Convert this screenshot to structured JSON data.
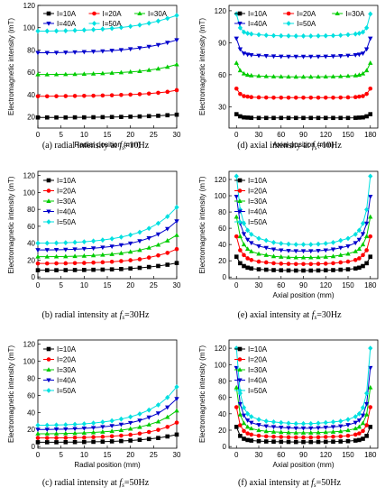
{
  "figure": {
    "captions": [
      {
        "prefix": "(a) radial intensity at ",
        "f": "f",
        "sub": "s",
        "suffix": "=10Hz"
      },
      {
        "prefix": "(d) axial intensity at ",
        "f": "f",
        "sub": "s",
        "suffix": "=10Hz"
      },
      {
        "prefix": "(b) radial intensity at ",
        "f": "f",
        "sub": "s",
        "suffix": "=30Hz"
      },
      {
        "prefix": "(e) axial intensity at ",
        "f": "f",
        "sub": "s",
        "suffix": "=30Hz"
      },
      {
        "prefix": "(c) radial intensity at ",
        "f": "f",
        "sub": "s",
        "suffix": "=50Hz"
      },
      {
        "prefix": "(f) axial intensity at ",
        "f": "f",
        "sub": "s",
        "suffix": "=50Hz"
      }
    ],
    "colors": {
      "I=10A": "#000000",
      "I=20A": "#ff0000",
      "I=30A": "#00cc00",
      "I=40A": "#0000cc",
      "I=50A": "#00e0e0"
    },
    "markers": {
      "I=10A": "square",
      "I=20A": "circle",
      "I=30A": "triangle-up",
      "I=40A": "triangle-down",
      "I=50A": "diamond"
    }
  },
  "chart_data": [
    {
      "id": "a",
      "type": "line",
      "xlabel": "Radial position (mm)",
      "ylabel": "Electromagnetic intensity (mT)",
      "xlim": [
        0,
        30
      ],
      "ylim": [
        10,
        120
      ],
      "xticks": [
        0,
        5,
        10,
        15,
        20,
        25,
        30
      ],
      "yticks": [
        20,
        40,
        60,
        80,
        100,
        120
      ],
      "legend": "top-two-rows",
      "x": [
        0,
        2,
        4,
        6,
        8,
        10,
        12,
        14,
        16,
        18,
        20,
        22,
        24,
        26,
        28,
        30
      ],
      "series": [
        {
          "name": "I=10A",
          "values": [
            19.5,
            19.5,
            19.5,
            19.5,
            19.6,
            19.6,
            19.7,
            19.8,
            19.9,
            20.0,
            20.2,
            20.4,
            20.7,
            21.0,
            21.5,
            22.0
          ]
        },
        {
          "name": "I=20A",
          "values": [
            38.5,
            38.5,
            38.6,
            38.7,
            38.8,
            38.9,
            39.0,
            39.2,
            39.4,
            39.7,
            40.0,
            40.4,
            40.9,
            41.6,
            42.5,
            44.0
          ]
        },
        {
          "name": "I=30A",
          "values": [
            58,
            58,
            58.1,
            58.2,
            58.3,
            58.5,
            58.7,
            59.0,
            59.4,
            59.8,
            60.4,
            61.0,
            62.0,
            63.2,
            64.8,
            67.0
          ]
        },
        {
          "name": "I=40A",
          "values": [
            77.5,
            77.5,
            77.6,
            77.8,
            78.0,
            78.3,
            78.6,
            79.0,
            79.5,
            80.1,
            80.9,
            81.8,
            83.0,
            84.6,
            86.6,
            89.0
          ]
        },
        {
          "name": "I=50A",
          "values": [
            97,
            97,
            97.1,
            97.3,
            97.6,
            97.9,
            98.3,
            98.8,
            99.4,
            100.2,
            101.2,
            102.4,
            104.0,
            106.0,
            108.4,
            111.0
          ]
        }
      ]
    },
    {
      "id": "d",
      "type": "line",
      "xlabel": "Axial position (mm)",
      "ylabel": "Electromagnetic intensity (mT)",
      "xlim": [
        -10,
        190
      ],
      "ylim": [
        10,
        125
      ],
      "xticks": [
        0,
        30,
        60,
        90,
        120,
        150,
        180
      ],
      "yticks": [
        30,
        60,
        90,
        120
      ],
      "legend": "top-two-rows",
      "x": [
        0,
        5,
        10,
        15,
        20,
        30,
        40,
        50,
        60,
        70,
        80,
        90,
        100,
        110,
        120,
        130,
        140,
        150,
        160,
        165,
        170,
        175,
        180
      ],
      "series": [
        {
          "name": "I=10A",
          "values": [
            23,
            21,
            20,
            19.8,
            19.6,
            19.5,
            19.5,
            19.5,
            19.5,
            19.5,
            19.5,
            19.5,
            19.5,
            19.5,
            19.5,
            19.5,
            19.5,
            19.5,
            19.6,
            19.8,
            20,
            21,
            23
          ]
        },
        {
          "name": "I=20A",
          "values": [
            47,
            42,
            40,
            39.5,
            39,
            38.8,
            38.6,
            38.5,
            38.5,
            38.5,
            38.5,
            38.5,
            38.5,
            38.5,
            38.5,
            38.5,
            38.6,
            38.8,
            39,
            39.5,
            40,
            42,
            47
          ]
        },
        {
          "name": "I=30A",
          "values": [
            71,
            64,
            61,
            59.8,
            59.3,
            58.8,
            58.5,
            58.3,
            58.2,
            58.1,
            58.0,
            58.0,
            58.0,
            58.1,
            58.2,
            58.3,
            58.5,
            58.8,
            59.3,
            59.8,
            61,
            64,
            71
          ]
        },
        {
          "name": "I=40A",
          "values": [
            94,
            84,
            80,
            79,
            78.5,
            78,
            77.6,
            77.3,
            77.1,
            77.0,
            77.0,
            77.0,
            77.0,
            77.0,
            77.1,
            77.3,
            77.6,
            78,
            78.5,
            79,
            80,
            84,
            94
          ]
        },
        {
          "name": "I=50A",
          "values": [
            117,
            104,
            100,
            98.8,
            98.2,
            97.5,
            97.0,
            96.7,
            96.5,
            96.4,
            96.3,
            96.3,
            96.3,
            96.4,
            96.5,
            96.7,
            97.0,
            97.5,
            98.2,
            98.8,
            100,
            104,
            117
          ]
        }
      ]
    },
    {
      "id": "b",
      "type": "line",
      "xlabel": "",
      "ylabel": "Electromagnetic intensity (mT)",
      "xlim": [
        0,
        30
      ],
      "ylim": [
        -2,
        125
      ],
      "xticks": [
        0,
        5,
        10,
        15,
        20,
        25,
        30
      ],
      "yticks": [
        0,
        20,
        40,
        60,
        80,
        100,
        120
      ],
      "legend": "top-left",
      "x": [
        0,
        2,
        4,
        6,
        8,
        10,
        12,
        14,
        16,
        18,
        20,
        22,
        24,
        26,
        28,
        30
      ],
      "series": [
        {
          "name": "I=10A",
          "values": [
            8,
            8,
            8,
            8.1,
            8.2,
            8.3,
            8.5,
            8.7,
            9.0,
            9.4,
            10.0,
            10.8,
            11.8,
            13.0,
            14.5,
            16.5
          ]
        },
        {
          "name": "I=20A",
          "values": [
            16,
            16,
            16.1,
            16.2,
            16.4,
            16.6,
            17.0,
            17.4,
            18.0,
            18.8,
            19.8,
            21.0,
            23.0,
            25.5,
            28.5,
            33.0
          ]
        },
        {
          "name": "I=30A",
          "values": [
            24,
            24,
            24.1,
            24.3,
            24.6,
            25.0,
            25.5,
            26.2,
            27.0,
            28.2,
            29.8,
            31.8,
            34.5,
            38.0,
            43.0,
            49.5
          ]
        },
        {
          "name": "I=40A",
          "values": [
            32,
            32,
            32.2,
            32.4,
            32.8,
            33.3,
            34.0,
            35.0,
            36.2,
            37.8,
            39.8,
            42.5,
            46.0,
            50.5,
            57.0,
            66.0
          ]
        },
        {
          "name": "I=50A",
          "values": [
            40,
            40,
            40.2,
            40.5,
            41.0,
            41.6,
            42.5,
            43.7,
            45.2,
            47.2,
            49.8,
            53.0,
            57.5,
            63.5,
            71.5,
            82.5
          ]
        }
      ]
    },
    {
      "id": "e",
      "type": "line",
      "xlabel": "Axial position (mm)",
      "ylabel": "Electromagnetic intensity (mT)",
      "xlim": [
        -10,
        190
      ],
      "ylim": [
        -2,
        130
      ],
      "xticks": [
        0,
        30,
        60,
        90,
        120,
        150,
        180
      ],
      "yticks": [
        0,
        20,
        40,
        60,
        80,
        100,
        120
      ],
      "legend": "top-left",
      "x": [
        0,
        5,
        10,
        15,
        20,
        30,
        40,
        50,
        60,
        70,
        80,
        90,
        100,
        110,
        120,
        130,
        140,
        150,
        160,
        165,
        170,
        175,
        180
      ],
      "series": [
        {
          "name": "I=10A",
          "values": [
            25,
            17,
            13.5,
            11.5,
            10.5,
            9.5,
            9.0,
            8.5,
            8.3,
            8.1,
            8.0,
            8.0,
            8.0,
            8.1,
            8.3,
            8.5,
            9.0,
            9.5,
            10.5,
            11.5,
            13.5,
            17,
            25
          ]
        },
        {
          "name": "I=20A",
          "values": [
            50,
            33,
            27,
            23,
            21,
            19,
            18,
            17,
            16.5,
            16.2,
            16,
            16,
            16,
            16.2,
            16.5,
            17,
            18,
            19,
            21,
            23,
            27,
            33,
            50
          ]
        },
        {
          "name": "I=30A",
          "values": [
            74,
            50,
            40,
            34.5,
            31.5,
            28.5,
            27,
            25.5,
            24.8,
            24.3,
            24,
            24,
            24,
            24.3,
            24.8,
            25.5,
            27,
            28.5,
            31.5,
            34.5,
            40,
            50,
            74
          ]
        },
        {
          "name": "I=40A",
          "values": [
            99,
            66,
            53,
            46,
            42,
            38,
            36,
            34,
            33,
            32.4,
            32,
            32,
            32,
            32.4,
            33,
            34,
            36,
            38,
            42,
            46,
            53,
            66,
            99
          ]
        },
        {
          "name": "I=50A",
          "values": [
            124,
            83,
            66,
            57.5,
            52.5,
            47.5,
            45,
            42.5,
            41.3,
            40.5,
            40,
            40,
            40,
            40.5,
            41.3,
            42.5,
            45,
            47.5,
            52.5,
            57.5,
            66,
            83,
            124
          ]
        }
      ]
    },
    {
      "id": "c",
      "type": "line",
      "xlabel": "Radial position (mm)",
      "ylabel": "Electromagnetic intensity (mT)",
      "xlim": [
        0,
        30
      ],
      "ylim": [
        -2,
        125
      ],
      "xticks": [
        0,
        5,
        10,
        15,
        20,
        25,
        30
      ],
      "yticks": [
        0,
        20,
        40,
        60,
        80,
        100,
        120
      ],
      "legend": "top-left",
      "x": [
        0,
        2,
        4,
        6,
        8,
        10,
        12,
        14,
        16,
        18,
        20,
        22,
        24,
        26,
        28,
        30
      ],
      "series": [
        {
          "name": "I=10A",
          "values": [
            5,
            5,
            5,
            5.1,
            5.2,
            5.3,
            5.5,
            5.7,
            6.0,
            6.4,
            7.0,
            7.8,
            8.8,
            10.0,
            11.8,
            14.0
          ]
        },
        {
          "name": "I=20A",
          "values": [
            10,
            10,
            10.1,
            10.2,
            10.4,
            10.6,
            11.0,
            11.4,
            12.0,
            12.8,
            13.8,
            15.2,
            17.0,
            19.5,
            23.0,
            28.0
          ]
        },
        {
          "name": "I=30A",
          "values": [
            15,
            15,
            15.1,
            15.3,
            15.6,
            16.0,
            16.5,
            17.2,
            18.0,
            19.2,
            20.8,
            22.8,
            25.6,
            29.2,
            34.5,
            42.0
          ]
        },
        {
          "name": "I=40A",
          "values": [
            20,
            20,
            20.2,
            20.4,
            20.8,
            21.3,
            22.0,
            23.0,
            24.2,
            25.8,
            27.8,
            30.5,
            34.2,
            39.0,
            46.0,
            56.0
          ]
        },
        {
          "name": "I=50A",
          "values": [
            25,
            25,
            25.2,
            25.5,
            26.0,
            26.6,
            27.5,
            28.7,
            30.2,
            32.2,
            34.8,
            38.2,
            42.8,
            48.8,
            57.5,
            70.0
          ]
        }
      ]
    },
    {
      "id": "f",
      "type": "line",
      "xlabel": "Axial position (mm)",
      "ylabel": "Electromagnetic intensity (mT)",
      "xlim": [
        -10,
        190
      ],
      "ylim": [
        -2,
        130
      ],
      "xticks": [
        0,
        30,
        60,
        90,
        120,
        150,
        180
      ],
      "yticks": [
        0,
        20,
        40,
        60,
        80,
        100,
        120
      ],
      "legend": "top-left",
      "x": [
        0,
        5,
        10,
        15,
        20,
        30,
        40,
        50,
        60,
        70,
        80,
        90,
        100,
        110,
        120,
        130,
        140,
        150,
        160,
        165,
        170,
        175,
        180
      ],
      "series": [
        {
          "name": "I=10A",
          "values": [
            24,
            13,
            9.5,
            8.0,
            7.3,
            6.6,
            6.2,
            6.0,
            5.8,
            5.7,
            5.6,
            5.6,
            5.6,
            5.7,
            5.8,
            6.0,
            6.2,
            6.6,
            7.3,
            8.0,
            9.5,
            13,
            24
          ]
        },
        {
          "name": "I=20A",
          "values": [
            48,
            26,
            19,
            16,
            14.6,
            13.2,
            12.4,
            12.0,
            11.7,
            11.4,
            11.2,
            11.2,
            11.2,
            11.4,
            11.7,
            12.0,
            12.4,
            13.2,
            14.6,
            16,
            19,
            26,
            48
          ]
        },
        {
          "name": "I=30A",
          "values": [
            72,
            39,
            28.5,
            24,
            22,
            19.8,
            18.6,
            18.0,
            17.5,
            17.1,
            16.8,
            16.8,
            16.8,
            17.1,
            17.5,
            18.0,
            18.6,
            19.8,
            22,
            24,
            28.5,
            39,
            72
          ]
        },
        {
          "name": "I=40A",
          "values": [
            96,
            52,
            38,
            32,
            29.2,
            26.4,
            24.8,
            24.0,
            23.3,
            22.8,
            22.4,
            22.4,
            22.4,
            22.8,
            23.3,
            24.0,
            24.8,
            26.4,
            29.2,
            32,
            38,
            52,
            96
          ]
        },
        {
          "name": "I=50A",
          "values": [
            120,
            65,
            47.5,
            40,
            36.5,
            33,
            31,
            30,
            29.2,
            28.5,
            28,
            28,
            28,
            28.5,
            29.2,
            30,
            31,
            33,
            36.5,
            40,
            47.5,
            65,
            120
          ]
        }
      ]
    }
  ]
}
